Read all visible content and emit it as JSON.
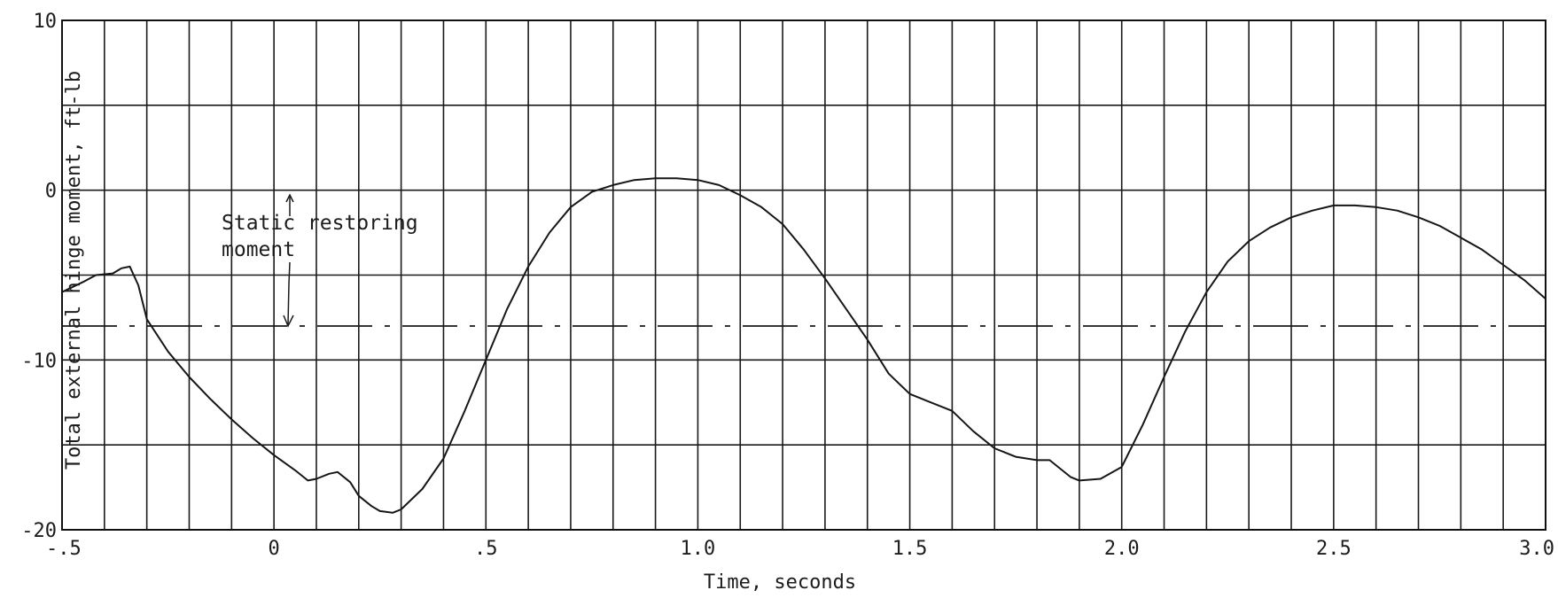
{
  "chart_data": {
    "type": "line",
    "title": "",
    "xlabel": "Time, seconds",
    "ylabel": "Total external hinge moment, ft-lb",
    "xlim": [
      -0.5,
      3.0
    ],
    "ylim": [
      -20,
      10
    ],
    "grid": true,
    "x_ticks": [
      "-.5",
      "0",
      ".5",
      "1.0",
      "1.5",
      "2.0",
      "2.5",
      "3.0"
    ],
    "y_ticks": [
      "10",
      "0",
      "-10",
      "-20"
    ],
    "annotation": {
      "text_line1": "Static restoring",
      "text_line2": "moment"
    },
    "reference_line": {
      "y": -8
    },
    "series": [
      {
        "x": [
          -0.5,
          -0.45,
          -0.42,
          -0.38,
          -0.36,
          -0.34,
          -0.32,
          -0.3,
          -0.25,
          -0.2,
          -0.15,
          -0.1,
          -0.05,
          0.0,
          0.05,
          0.08,
          0.1,
          0.13,
          0.15,
          0.18,
          0.2,
          0.23,
          0.25,
          0.28,
          0.3,
          0.35,
          0.4,
          0.45,
          0.5,
          0.55,
          0.6,
          0.65,
          0.7,
          0.75,
          0.8,
          0.85,
          0.9,
          0.95,
          1.0,
          1.05,
          1.1,
          1.15,
          1.2,
          1.25,
          1.3,
          1.35,
          1.4,
          1.45,
          1.5,
          1.55,
          1.6,
          1.65,
          1.7,
          1.75,
          1.8,
          1.83,
          1.85,
          1.88,
          1.9,
          1.95,
          2.0,
          2.05,
          2.1,
          2.15,
          2.2,
          2.25,
          2.3,
          2.35,
          2.4,
          2.45,
          2.5,
          2.55,
          2.6,
          2.65,
          2.7,
          2.75,
          2.8,
          2.85,
          2.9,
          2.95,
          3.0
        ],
        "y": [
          -6.0,
          -5.4,
          -5.0,
          -4.9,
          -4.6,
          -4.5,
          -5.6,
          -7.6,
          -9.5,
          -11.0,
          -12.3,
          -13.5,
          -14.6,
          -15.6,
          -16.5,
          -17.1,
          -17.0,
          -16.7,
          -16.6,
          -17.2,
          -18.0,
          -18.6,
          -18.9,
          -19.0,
          -18.8,
          -17.6,
          -15.8,
          -13.0,
          -10.0,
          -7.0,
          -4.5,
          -2.5,
          -1.0,
          -0.1,
          0.3,
          0.6,
          0.7,
          0.7,
          0.6,
          0.3,
          -0.3,
          -1.0,
          -2.0,
          -3.5,
          -5.2,
          -7.0,
          -8.8,
          -10.8,
          -12.0,
          -12.5,
          -13.0,
          -14.2,
          -15.2,
          -15.7,
          -15.9,
          -15.9,
          -16.3,
          -16.9,
          -17.1,
          -17.0,
          -16.3,
          -13.8,
          -11.0,
          -8.3,
          -6.0,
          -4.2,
          -3.0,
          -2.2,
          -1.6,
          -1.2,
          -0.9,
          -0.9,
          -1.0,
          -1.2,
          -1.6,
          -2.1,
          -2.8,
          -3.5,
          -4.4,
          -5.3,
          -6.4
        ]
      }
    ]
  }
}
